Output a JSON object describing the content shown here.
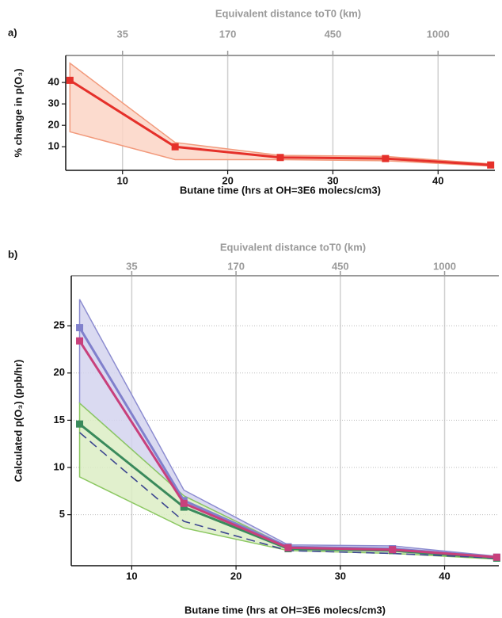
{
  "chart_data": [
    {
      "type": "line",
      "panel_label": "a)",
      "x2_title": "Equivalent distance toT0 (km)",
      "x_title": "Butane time (hrs at OH=3E6 molecs/cm3)",
      "y_title": "% change in p(O₃)",
      "x": [
        5,
        15,
        25,
        35,
        45
      ],
      "xlim": [
        4.6,
        45.4
      ],
      "xticks": [
        10,
        20,
        30,
        40
      ],
      "x2ticks": [
        {
          "value": 10,
          "label": "35"
        },
        {
          "value": 20,
          "label": "170"
        },
        {
          "value": 30,
          "label": "450"
        },
        {
          "value": 40,
          "label": "1000"
        }
      ],
      "ylim": [
        -1,
        52.6
      ],
      "yticks": [
        10,
        20,
        30,
        40
      ],
      "grid": {
        "x": true,
        "y": false
      },
      "series": [
        {
          "color": "#e5302a",
          "marker": "square",
          "values": [
            41,
            10,
            5,
            4.5,
            1.5
          ],
          "upper": [
            49,
            12,
            6,
            5.5,
            2
          ],
          "lower": [
            17,
            4,
            4,
            3.5,
            1
          ],
          "band_color": "#fcd5c6",
          "band_edge": "#f29a7c"
        }
      ]
    },
    {
      "type": "line",
      "panel_label": "b)",
      "x2_title": "Equivalent distance toT0 (km)",
      "x_title": "Butane time (hrs at OH=3E6 molecs/cm3)",
      "y_title": "Calculated p(O₃) (ppb/hr)",
      "x": [
        5,
        15,
        25,
        35,
        45
      ],
      "xlim": [
        4.2,
        45.2
      ],
      "xticks": [
        10,
        20,
        30,
        40
      ],
      "x2ticks": [
        {
          "value": 10,
          "label": "35"
        },
        {
          "value": 20,
          "label": "170"
        },
        {
          "value": 30,
          "label": "450"
        },
        {
          "value": 40,
          "label": "1000"
        }
      ],
      "ylim": [
        -0.4,
        30.3
      ],
      "yticks": [
        5,
        10,
        15,
        20,
        25
      ],
      "grid": {
        "x": true,
        "y": true
      },
      "series": [
        {
          "color": "#8080cc",
          "marker": "square",
          "values": [
            24.8,
            6.5,
            1.6,
            1.4,
            0.5
          ],
          "upper": [
            27.8,
            7.6,
            1.8,
            1.7,
            0.6
          ],
          "lower": [
            16.8,
            7.0,
            1.6,
            1.4,
            0.5
          ],
          "band_color": "#d4d4ee",
          "band_edge": "#8c8cd0"
        },
        {
          "color": "#3a8a5c",
          "marker": "square",
          "values": [
            14.6,
            5.8,
            1.4,
            1.2,
            0.4
          ],
          "upper": [
            16.8,
            7.0,
            1.6,
            1.4,
            0.5
          ],
          "lower": [
            9.0,
            3.6,
            1.2,
            0.9,
            0.3
          ],
          "band_color": "#dcedc4",
          "band_edge": "#8cc862"
        },
        {
          "color": "#3c4690",
          "dash": true,
          "values": [
            13.7,
            4.3,
            1.2,
            0.9,
            0.4
          ]
        },
        {
          "color": "#c8407c",
          "marker": "square",
          "values": [
            23.4,
            6.2,
            1.5,
            1.3,
            0.5
          ]
        }
      ]
    }
  ]
}
